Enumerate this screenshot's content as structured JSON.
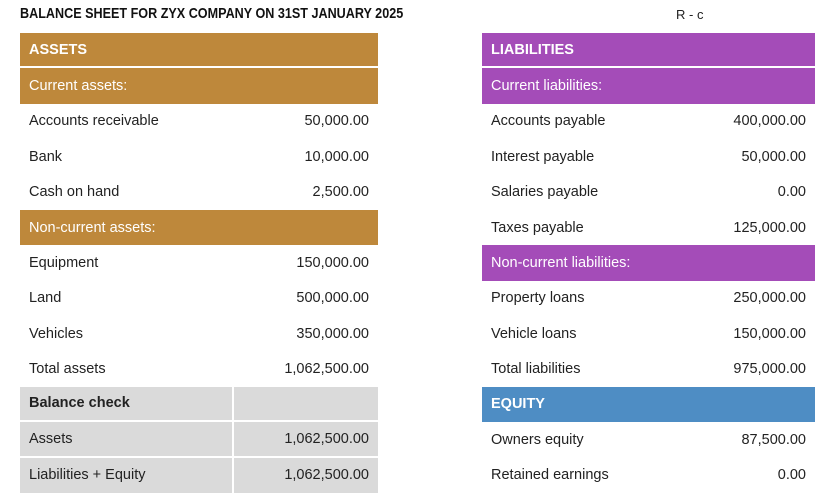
{
  "title": "BALANCE SHEET FOR ZYX COMPANY ON 31ST JANUARY 2025",
  "corner_note": "R - c",
  "colors": {
    "assets-header": "#BE883B",
    "liabilities-header": "#A44CB8",
    "equity-header": "#4E8DC4",
    "balance-gray": "#DADADA"
  },
  "left_table": {
    "rows": [
      {
        "type": "header",
        "label": "ASSETS",
        "value": ""
      },
      {
        "type": "subheader",
        "label": "Current assets:",
        "value": ""
      },
      {
        "type": "item",
        "label": "Accounts receivable",
        "value": "50,000.00"
      },
      {
        "type": "item",
        "label": "Bank",
        "value": "10,000.00"
      },
      {
        "type": "item",
        "label": "Cash on hand",
        "value": "2,500.00"
      },
      {
        "type": "subheader",
        "label": "Non-current assets:",
        "value": ""
      },
      {
        "type": "item",
        "label": "Equipment",
        "value": "150,000.00"
      },
      {
        "type": "item",
        "label": "Land",
        "value": "500,000.00"
      },
      {
        "type": "item",
        "label": "Vehicles",
        "value": "350,000.00"
      },
      {
        "type": "item",
        "label": "Total assets",
        "value": "1,062,500.00"
      },
      {
        "type": "gray_header",
        "label": "Balance check",
        "value": ""
      },
      {
        "type": "gray_item",
        "label": "Assets",
        "value": "1,062,500.00"
      },
      {
        "type": "gray_item",
        "label": "Liabilities + Equity",
        "value": "1,062,500.00"
      }
    ]
  },
  "right_table": {
    "rows": [
      {
        "type": "header",
        "label": "LIABILITIES",
        "value": ""
      },
      {
        "type": "subheader",
        "label": "Current liabilities:",
        "value": ""
      },
      {
        "type": "item",
        "label": "Accounts payable",
        "value": "400,000.00"
      },
      {
        "type": "item",
        "label": "Interest payable",
        "value": "50,000.00"
      },
      {
        "type": "item",
        "label": "Salaries payable",
        "value": "0.00"
      },
      {
        "type": "item",
        "label": "Taxes payable",
        "value": "125,000.00"
      },
      {
        "type": "subheader",
        "label": "Non-current liabilities:",
        "value": ""
      },
      {
        "type": "item",
        "label": "Property loans",
        "value": "250,000.00"
      },
      {
        "type": "item",
        "label": "Vehicle loans",
        "value": "150,000.00"
      },
      {
        "type": "item",
        "label": "Total liabilities",
        "value": "975,000.00"
      },
      {
        "type": "header_equity",
        "label": "EQUITY",
        "value": ""
      },
      {
        "type": "item",
        "label": "Owners equity",
        "value": "87,500.00"
      },
      {
        "type": "item",
        "label": "Retained earnings",
        "value": "0.00"
      }
    ]
  }
}
